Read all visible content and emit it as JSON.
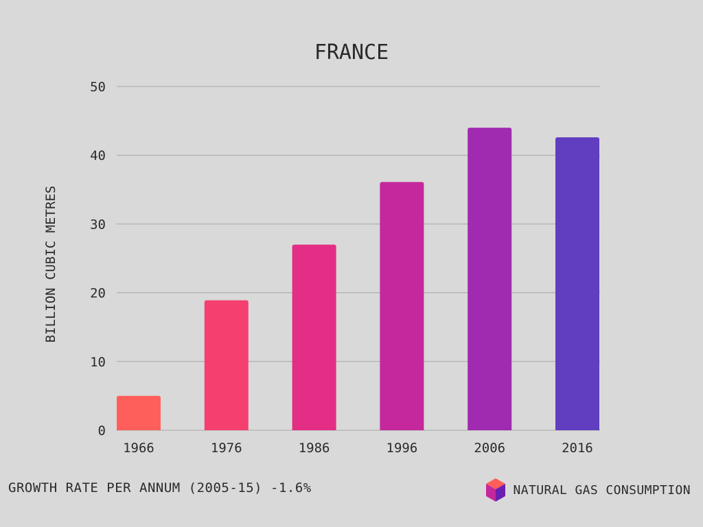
{
  "chart_data": {
    "type": "bar",
    "title": "FRANCE",
    "xlabel": "",
    "ylabel": "BILLION CUBIC METRES",
    "categories": [
      "1966",
      "1976",
      "1986",
      "1996",
      "2006",
      "2016"
    ],
    "values": [
      5.0,
      18.9,
      27.0,
      36.1,
      44.0,
      42.6
    ],
    "ylim": [
      0,
      50
    ],
    "yticks": [
      0,
      10,
      20,
      30,
      40,
      50
    ],
    "grid": true,
    "bar_colors": [
      "#ff5f5a",
      "#f53f6f",
      "#e42d84",
      "#c4289c",
      "#a02ab0",
      "#613dc0"
    ],
    "gridline_color": "#a6a6a6"
  },
  "footer": {
    "note": "GROWTH RATE PER ANNUM (2005-15) -1.6%",
    "brand": "NATURAL GAS CONSUMPTION",
    "brand_icon": "cube-icon"
  },
  "colors": {
    "background": "#d9d9d9",
    "text": "#2a2a2a"
  }
}
